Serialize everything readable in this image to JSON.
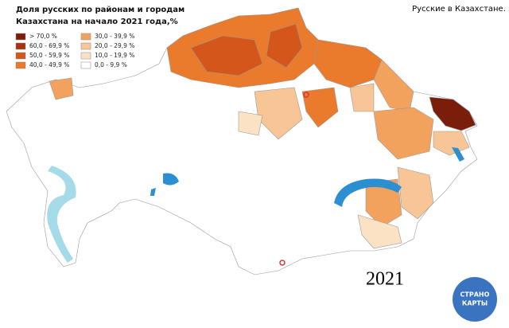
{
  "title": [
    "Доля русских по районам и городам",
    "Казахстана на начало 2021 года,%"
  ],
  "caption": "Русские в Казахстане.",
  "year": "2021",
  "logo": [
    "СТРАНО",
    "КАРТЫ"
  ],
  "legend": [
    {
      "label": "> 70,0 %",
      "color": "#7b1d0b"
    },
    {
      "label": "60,0 - 69,9 %",
      "color": "#a8320f"
    },
    {
      "label": "50,0 - 59,9 %",
      "color": "#d4561a"
    },
    {
      "label": "40,0 - 49,9 %",
      "color": "#ea7a2c"
    },
    {
      "label": "30,0 - 39,9 %",
      "color": "#f3a25e"
    },
    {
      "label": "20,0 - 29,9 %",
      "color": "#f7c596"
    },
    {
      "label": "10,0 - 19,9 %",
      "color": "#fbe2c5"
    },
    {
      "label": "0,0 - 9,9 %",
      "color": "#ffffff"
    }
  ]
}
